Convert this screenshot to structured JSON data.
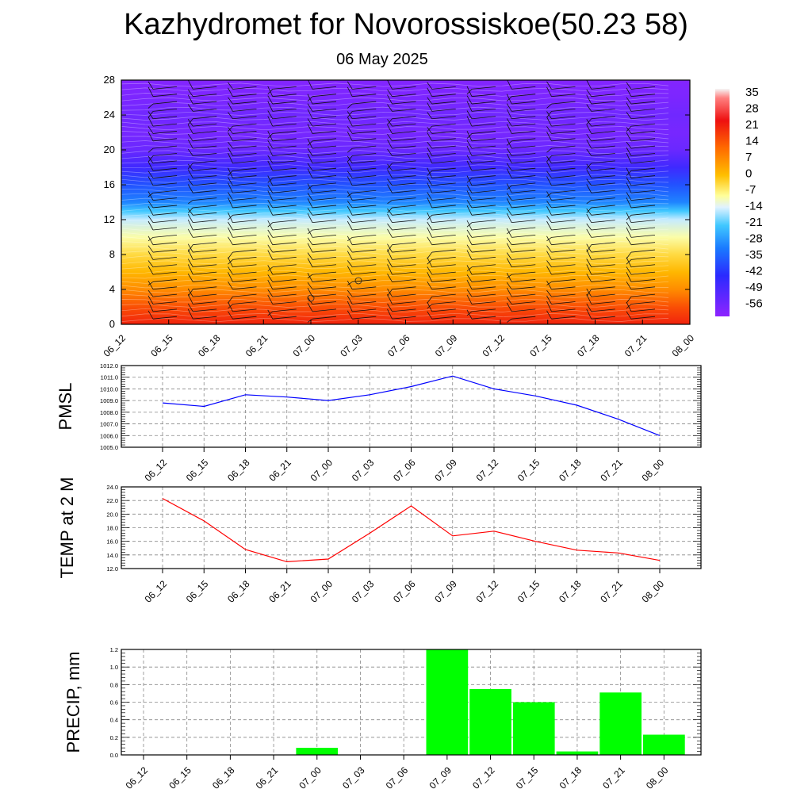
{
  "title": "Kazhydromet for Novorossiskoe(50.23 58)",
  "subtitle": "06 May 2025",
  "chart_data": [
    {
      "type": "heatmap",
      "name": "temperature-wind-cross-section",
      "x_categories": [
        "06_12",
        "06_15",
        "06_18",
        "06_21",
        "07_00",
        "07_03",
        "07_06",
        "07_09",
        "07_12",
        "07_15",
        "07_18",
        "07_21",
        "08_00"
      ],
      "y_ticks": [
        0,
        4,
        8,
        12,
        16,
        20,
        24,
        28
      ],
      "ylim": [
        0,
        28
      ],
      "colorbar_labels": [
        "35",
        "28",
        "21",
        "14",
        "7",
        "0",
        "-7",
        "-14",
        "-21",
        "-28",
        "-35",
        "-42",
        "-49",
        "-56"
      ],
      "temperature_profile_by_height": [
        {
          "y": 0,
          "t": 22
        },
        {
          "y": 2,
          "t": 17
        },
        {
          "y": 4,
          "t": 10
        },
        {
          "y": 6,
          "t": 5
        },
        {
          "y": 8,
          "t": 1
        },
        {
          "y": 10,
          "t": -4
        },
        {
          "y": 12,
          "t": -11
        },
        {
          "y": 13,
          "t": -16
        },
        {
          "y": 14,
          "t": -23
        },
        {
          "y": 16,
          "t": -32
        },
        {
          "y": 18,
          "t": -45
        },
        {
          "y": 20,
          "t": -55
        },
        {
          "y": 22,
          "t": -60
        },
        {
          "y": 24,
          "t": -57
        },
        {
          "y": 26,
          "t": -62
        },
        {
          "y": 28,
          "t": -65
        }
      ],
      "wind_barbs": "rows of wind barbs at every time step"
    },
    {
      "type": "line",
      "ylabel": "PMSL",
      "categories": [
        "06_12",
        "06_15",
        "06_18",
        "06_21",
        "07_00",
        "07_03",
        "07_06",
        "07_09",
        "07_12",
        "07_15",
        "07_18",
        "07_21",
        "08_00"
      ],
      "yticks": [
        "1005.0",
        "1006.0",
        "1007.0",
        "1008.0",
        "1009.0",
        "1010.0",
        "1011.0",
        "1012.0"
      ],
      "ylim": [
        1005,
        1012
      ],
      "series": [
        {
          "color": "#0000ff",
          "values": [
            1008.8,
            1008.5,
            1009.5,
            1009.3,
            1009.0,
            1009.5,
            1010.2,
            1011.1,
            1010.0,
            1009.4,
            1008.6,
            1007.4,
            1006.0
          ]
        }
      ]
    },
    {
      "type": "line",
      "ylabel": "TEMP at 2 M",
      "categories": [
        "06_12",
        "06_15",
        "06_18",
        "06_21",
        "07_00",
        "07_03",
        "07_06",
        "07_09",
        "07_12",
        "07_15",
        "07_18",
        "07_21",
        "08_00"
      ],
      "yticks": [
        "12.0",
        "14.0",
        "16.0",
        "18.0",
        "20.0",
        "22.0",
        "24.0"
      ],
      "ylim": [
        12,
        24
      ],
      "series": [
        {
          "color": "#ff0000",
          "values": [
            22.3,
            19.0,
            14.8,
            13.0,
            13.4,
            17.2,
            21.2,
            16.8,
            17.5,
            16.0,
            14.7,
            14.3,
            13.2
          ]
        }
      ]
    },
    {
      "type": "bar",
      "ylabel": "PRECIP, mm",
      "categories": [
        "06_12",
        "06_15",
        "06_18",
        "06_21",
        "07_00",
        "07_03",
        "07_06",
        "07_09",
        "07_12",
        "07_15",
        "07_18",
        "07_21",
        "08_00"
      ],
      "yticks": [
        "0.0",
        "0.2",
        "0.4",
        "0.6",
        "0.8",
        "1.0",
        "1.2"
      ],
      "ylim": [
        0,
        1.2
      ],
      "series": [
        {
          "color": "#00ff00",
          "values": [
            0,
            0,
            0,
            0,
            0.08,
            0,
            0,
            1.2,
            0.75,
            0.6,
            0.04,
            0.71,
            0.23
          ]
        }
      ]
    }
  ]
}
